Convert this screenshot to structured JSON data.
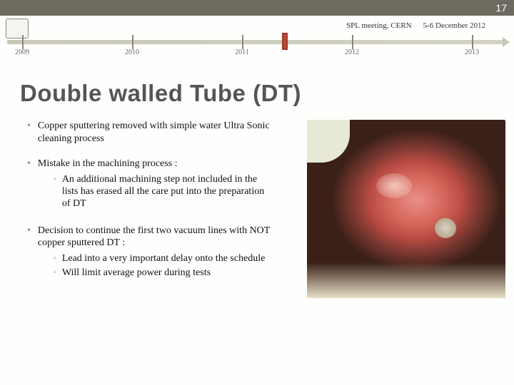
{
  "page_number": "17",
  "header": {
    "meeting": "SPL meeting, CERN",
    "date": "5-6 December 2012"
  },
  "timeline": {
    "years": [
      "2009",
      "2010",
      "2011",
      "2012",
      "2013"
    ],
    "tick_positions_pct": [
      3,
      25,
      47,
      69,
      93
    ],
    "marker_position_pct": 55,
    "line_color": "#c9c7b8",
    "tick_color": "#8a8775",
    "marker_color": "#b84a3a"
  },
  "title": "Double walled Tube (DT)",
  "bullets": [
    {
      "text": "Copper sputtering removed with simple water Ultra Sonic cleaning process",
      "subs": []
    },
    {
      "text": "Mistake in the machining process :",
      "subs": [
        "An additional machining step not included in the lists has erased all the care put into the preparation of DT"
      ]
    },
    {
      "text": "Decision to continue the first two vacuum lines with NOT copper sputtered DT :",
      "subs": [
        "Lead into a very important delay onto the schedule",
        "Will limit average power during tests"
      ]
    }
  ],
  "colors": {
    "page_bar_bg": "#6d6a5f",
    "title_color": "#555555",
    "text_color": "#111111",
    "bullet_color": "#888888"
  }
}
